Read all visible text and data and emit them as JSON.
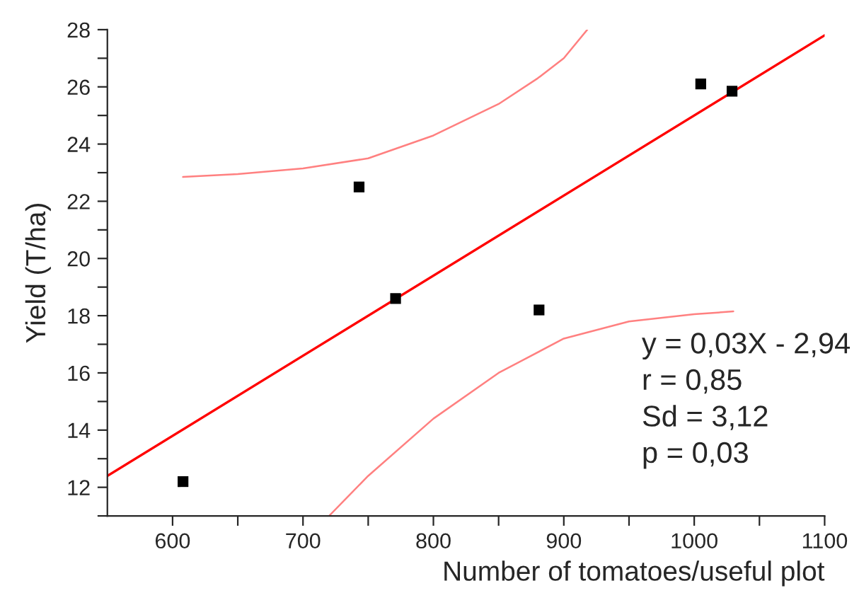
{
  "chart_data": {
    "type": "scatter",
    "xlabel": "Number of tomatoes/useful plot",
    "ylabel": "Yield (T/ha)",
    "xlim": [
      550,
      1100
    ],
    "ylim": [
      11,
      28
    ],
    "xticks": [
      600,
      {
        "value": 650,
        "label": null
      },
      700,
      {
        "value": 750,
        "label": null
      },
      800,
      {
        "value": 850,
        "label": null
      },
      900,
      {
        "value": 950,
        "label": null
      },
      1000,
      {
        "value": 1050,
        "label": null
      },
      1100
    ],
    "yticks": [
      {
        "value": 11,
        "label": null
      },
      12,
      {
        "value": 13,
        "label": null
      },
      14,
      {
        "value": 15,
        "label": null
      },
      16,
      {
        "value": 17,
        "label": null
      },
      18,
      {
        "value": 19,
        "label": null
      },
      20,
      {
        "value": 21,
        "label": null
      },
      22,
      {
        "value": 23,
        "label": null
      },
      24,
      {
        "value": 25,
        "label": null
      },
      26,
      {
        "value": 27,
        "label": null
      },
      28
    ],
    "grid": false,
    "legend": false,
    "series": [
      {
        "color": "#000000",
        "marker": "square",
        "x": [
          608,
          743,
          771,
          881,
          1005,
          1029
        ],
        "values": [
          12.2,
          22.5,
          18.6,
          18.2,
          26.1,
          25.85
        ]
      },
      {
        "type": "line",
        "color": "#ff0000",
        "marker": "none",
        "line_style": "solid",
        "x": [
          550,
          1100
        ],
        "values": [
          12.4,
          27.8
        ]
      },
      {
        "type": "line",
        "color": "#ff8080",
        "marker": "none",
        "line_style": "solid",
        "x": [
          608,
          650,
          700,
          750,
          800,
          850,
          880,
          900,
          918
        ],
        "values": [
          22.85,
          22.95,
          23.15,
          23.5,
          24.3,
          25.4,
          26.3,
          27.0,
          28.0
        ]
      },
      {
        "type": "line",
        "color": "#ff8080",
        "marker": "none",
        "line_style": "solid",
        "x": [
          720,
          750,
          800,
          850,
          900,
          950,
          1000,
          1030
        ],
        "values": [
          11.0,
          12.4,
          14.4,
          16.0,
          17.2,
          17.8,
          18.05,
          18.15
        ]
      }
    ],
    "annotations": [
      "y = 0,03X - 2,94",
      "r = 0,85",
      "Sd = 3,12",
      "p = 0,03"
    ]
  }
}
